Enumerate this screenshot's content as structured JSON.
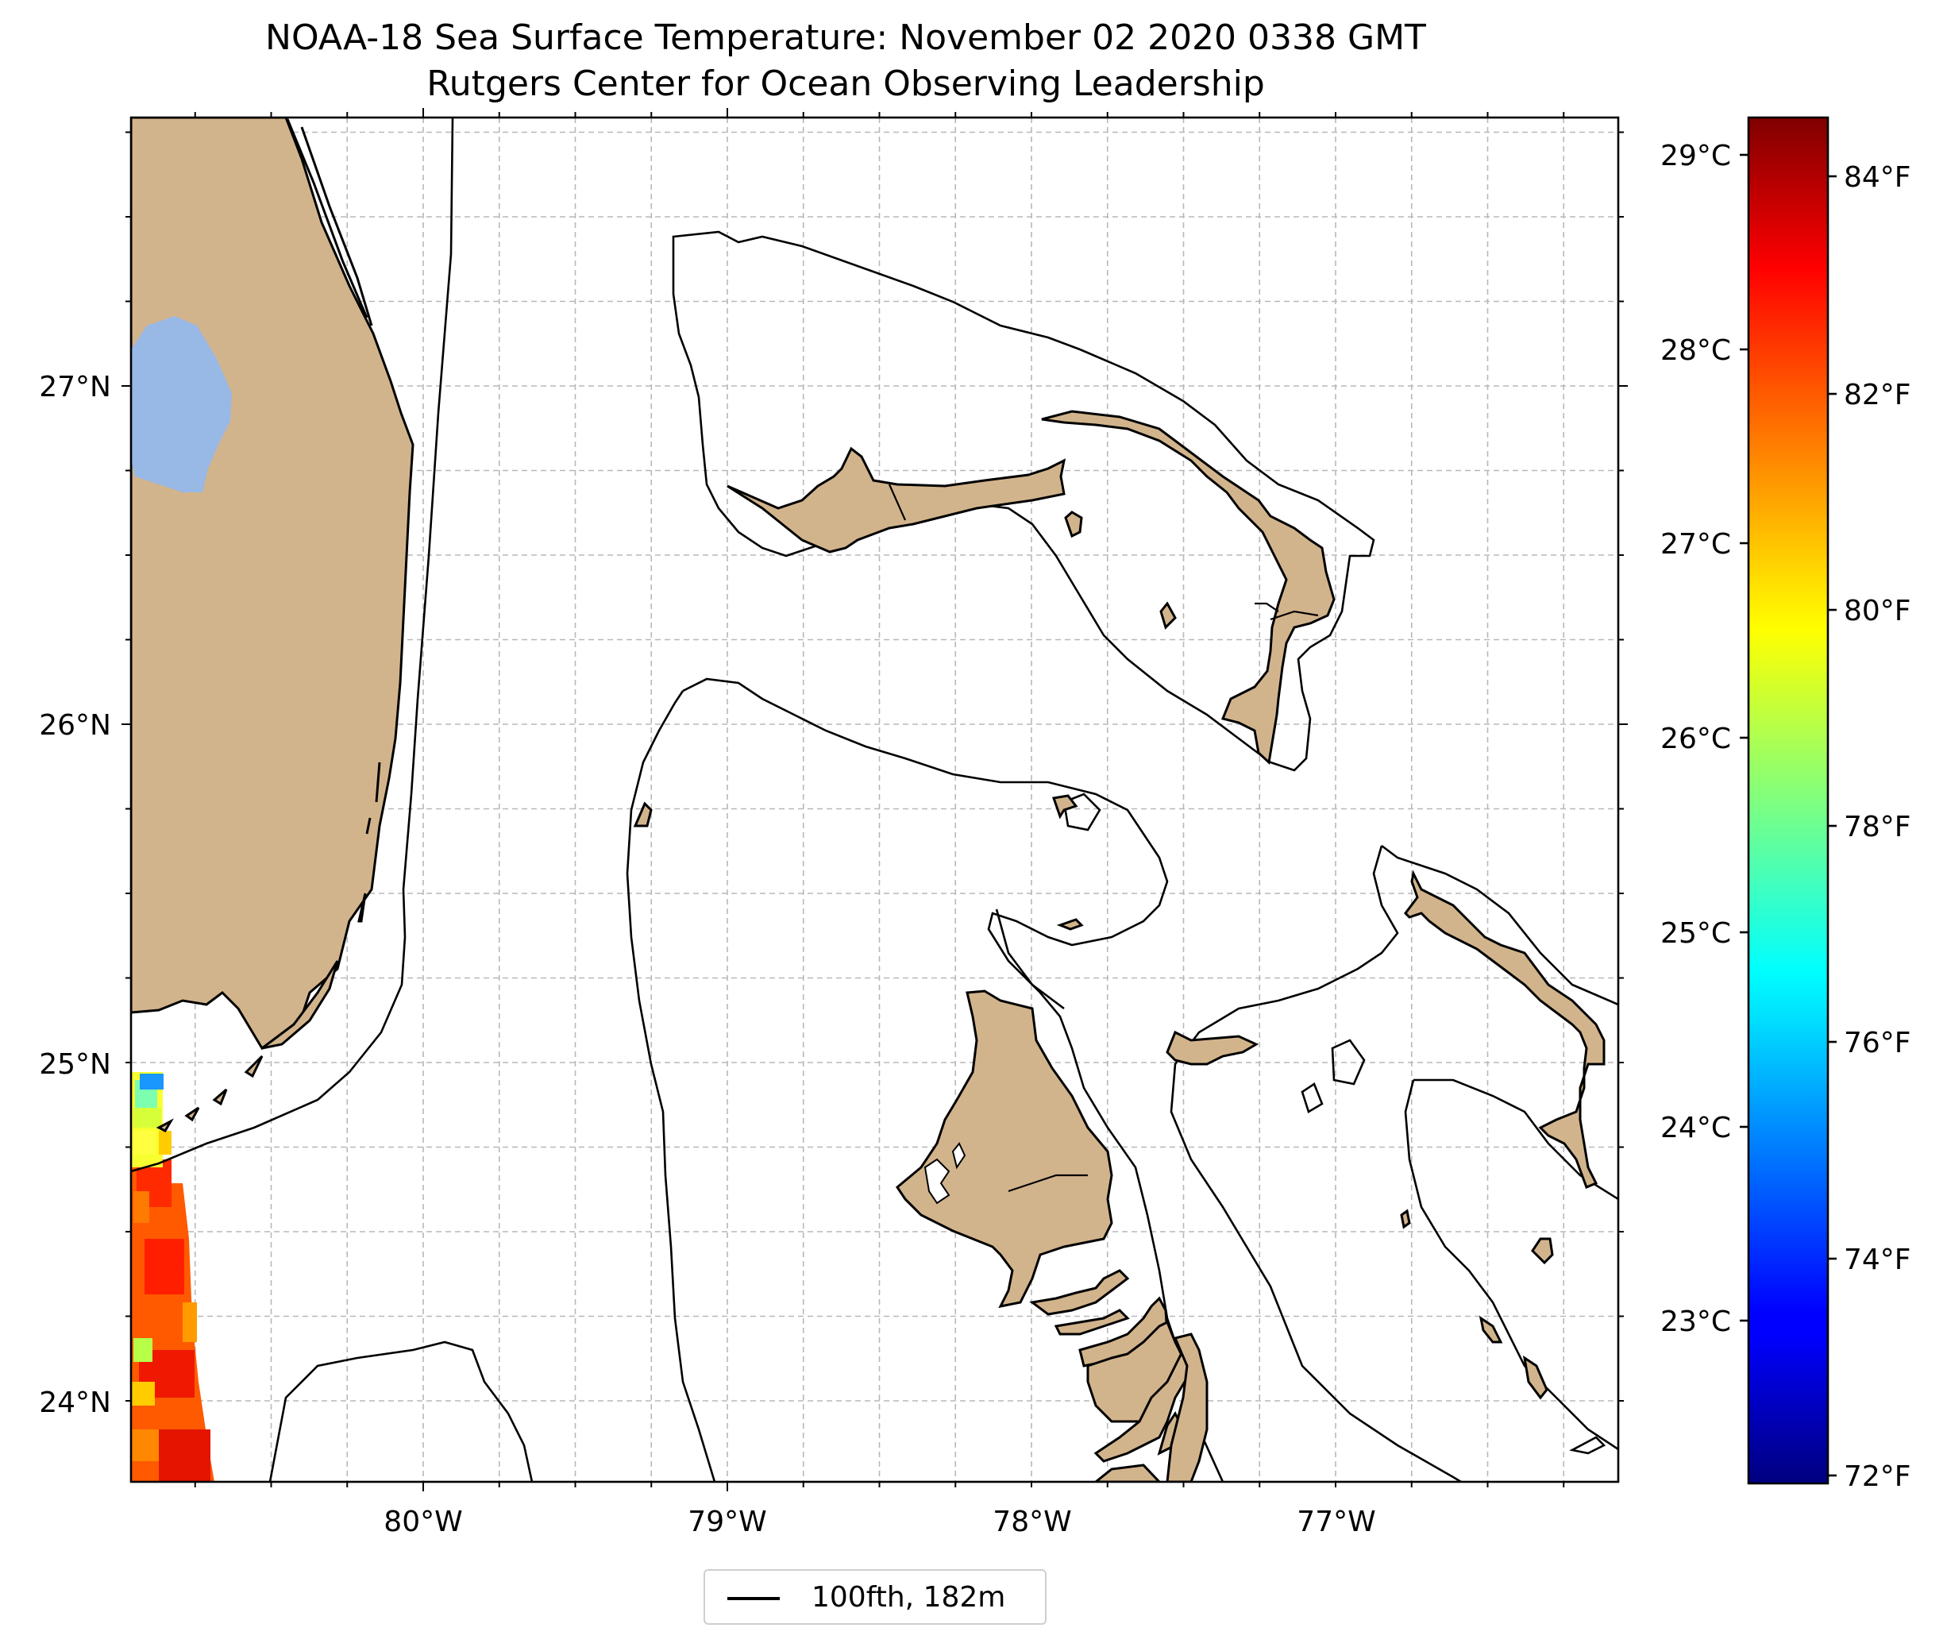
{
  "title": "NOAA-18 Sea Surface Temperature: November 02 2020 0338 GMT",
  "subtitle": "Rutgers Center for Ocean Observing Leadership",
  "map": {
    "lon_labels": [
      "80°W",
      "79°W",
      "78°W",
      "77°W"
    ],
    "lat_labels": [
      "27°N",
      "26°N",
      "25°N",
      "24°N"
    ],
    "gridlines": "dashed",
    "land_color": "#d2b48c",
    "lake_color": "#98b8e6",
    "isobath_color": "#000000"
  },
  "colorbar": {
    "colormap": "jet",
    "celsius_labels": [
      "29°C",
      "28°C",
      "27°C",
      "26°C",
      "25°C",
      "24°C",
      "23°C"
    ],
    "fahrenheit_labels": [
      "84°F",
      "82°F",
      "80°F",
      "78°F",
      "76°F",
      "74°F",
      "72°F"
    ],
    "range_f": [
      72,
      84.8
    ]
  },
  "legend": {
    "label": "100fth, 182m"
  }
}
